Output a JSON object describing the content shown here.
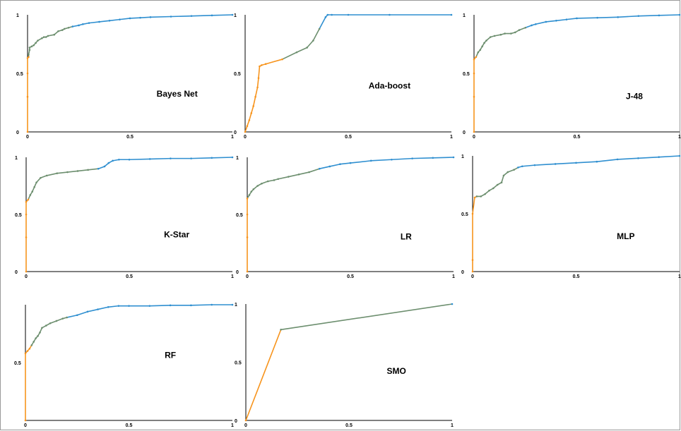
{
  "colors": {
    "low": "#f7941d",
    "mid": "#6d8f6f",
    "high": "#2f8fd0",
    "axis": "#000000"
  },
  "chart_data": [
    {
      "type": "line",
      "title": "Bayes Net",
      "xlim": [
        0,
        1
      ],
      "ylim": [
        0,
        1
      ],
      "x_ticks": [
        "0",
        "0.5",
        "1"
      ],
      "y_ticks": [
        "0",
        "0.5",
        "1"
      ],
      "x": [
        0,
        0,
        0,
        0,
        0.005,
        0.005,
        0.01,
        0.01,
        0.02,
        0.03,
        0.04,
        0.05,
        0.07,
        0.08,
        0.09,
        0.1,
        0.13,
        0.15,
        0.17,
        0.18,
        0.2,
        0.22,
        0.25,
        0.27,
        0.3,
        0.35,
        0.4,
        0.45,
        0.5,
        0.55,
        0.6,
        0.7,
        0.8,
        0.9,
        1.0
      ],
      "y": [
        0,
        0.3,
        0.5,
        0.63,
        0.64,
        0.66,
        0.7,
        0.72,
        0.73,
        0.74,
        0.76,
        0.78,
        0.8,
        0.81,
        0.81,
        0.82,
        0.83,
        0.86,
        0.87,
        0.88,
        0.89,
        0.9,
        0.91,
        0.92,
        0.93,
        0.94,
        0.95,
        0.96,
        0.97,
        0.975,
        0.98,
        0.985,
        0.99,
        0.995,
        1.0
      ]
    },
    {
      "type": "line",
      "title": "Ada-boost",
      "xlim": [
        0,
        1
      ],
      "ylim": [
        0,
        1
      ],
      "x_ticks": [
        "0",
        "0.5",
        "1"
      ],
      "y_ticks": [
        "0",
        "0.5",
        "1"
      ],
      "x": [
        0,
        0.01,
        0.02,
        0.03,
        0.04,
        0.05,
        0.06,
        0.065,
        0.07,
        0.08,
        0.1,
        0.18,
        0.25,
        0.3,
        0.33,
        0.36,
        0.39,
        0.4,
        0.42,
        0.5,
        0.7,
        1.0
      ],
      "y": [
        0,
        0.05,
        0.1,
        0.16,
        0.22,
        0.3,
        0.38,
        0.46,
        0.56,
        0.57,
        0.58,
        0.62,
        0.68,
        0.72,
        0.78,
        0.88,
        0.98,
        1.0,
        1.0,
        1.0,
        1.0,
        1.0
      ]
    },
    {
      "type": "line",
      "title": "J-48",
      "xlim": [
        0,
        1
      ],
      "ylim": [
        0,
        1
      ],
      "x_ticks": [
        "0",
        "0.5",
        "1"
      ],
      "y_ticks": [
        "0",
        "0.5",
        "1"
      ],
      "x": [
        0,
        0,
        0,
        0,
        0.01,
        0.02,
        0.03,
        0.04,
        0.05,
        0.06,
        0.08,
        0.1,
        0.13,
        0.15,
        0.18,
        0.2,
        0.22,
        0.25,
        0.28,
        0.3,
        0.35,
        0.4,
        0.45,
        0.5,
        0.6,
        0.7,
        0.8,
        0.9,
        1.0
      ],
      "y": [
        0,
        0.3,
        0.5,
        0.62,
        0.64,
        0.68,
        0.7,
        0.73,
        0.76,
        0.78,
        0.81,
        0.82,
        0.83,
        0.84,
        0.84,
        0.85,
        0.87,
        0.89,
        0.91,
        0.92,
        0.94,
        0.95,
        0.96,
        0.97,
        0.975,
        0.98,
        0.99,
        0.995,
        1.0
      ]
    },
    {
      "type": "line",
      "title": "K-Star",
      "xlim": [
        0,
        1
      ],
      "ylim": [
        0,
        1
      ],
      "x_ticks": [
        "0",
        "0.5",
        "1"
      ],
      "y_ticks": [
        "0",
        "0.5",
        "1"
      ],
      "x": [
        0,
        0,
        0,
        0,
        0.01,
        0.02,
        0.03,
        0.04,
        0.05,
        0.07,
        0.1,
        0.15,
        0.2,
        0.25,
        0.3,
        0.35,
        0.38,
        0.4,
        0.42,
        0.45,
        0.5,
        0.6,
        0.7,
        0.8,
        0.9,
        1.0
      ],
      "y": [
        0,
        0.3,
        0.5,
        0.61,
        0.63,
        0.67,
        0.7,
        0.74,
        0.78,
        0.82,
        0.84,
        0.86,
        0.87,
        0.88,
        0.89,
        0.9,
        0.92,
        0.95,
        0.97,
        0.98,
        0.98,
        0.985,
        0.99,
        0.99,
        0.995,
        1.0
      ]
    },
    {
      "type": "line",
      "title": "LR",
      "xlim": [
        0,
        1
      ],
      "ylim": [
        0,
        1
      ],
      "x_ticks": [
        "0",
        "0.5",
        "1"
      ],
      "y_ticks": [
        "0",
        "0.5",
        "1"
      ],
      "x": [
        0,
        0,
        0,
        0,
        0.01,
        0.02,
        0.03,
        0.05,
        0.07,
        0.1,
        0.13,
        0.15,
        0.2,
        0.25,
        0.3,
        0.35,
        0.4,
        0.45,
        0.5,
        0.6,
        0.7,
        0.8,
        0.9,
        1.0
      ],
      "y": [
        0,
        0.3,
        0.5,
        0.64,
        0.67,
        0.7,
        0.72,
        0.75,
        0.77,
        0.79,
        0.8,
        0.81,
        0.83,
        0.85,
        0.87,
        0.9,
        0.92,
        0.94,
        0.95,
        0.97,
        0.98,
        0.99,
        0.995,
        1.0
      ]
    },
    {
      "type": "line",
      "title": "MLP",
      "xlim": [
        0,
        1
      ],
      "ylim": [
        0,
        1
      ],
      "x_ticks": [
        "0",
        "0.5",
        "1"
      ],
      "y_ticks": [
        "0",
        "0.5",
        "1"
      ],
      "x": [
        0,
        0,
        0,
        0.01,
        0.02,
        0.04,
        0.06,
        0.08,
        0.1,
        0.12,
        0.14,
        0.15,
        0.17,
        0.2,
        0.22,
        0.24,
        0.3,
        0.4,
        0.5,
        0.6,
        0.7,
        0.8,
        0.9,
        1.0
      ],
      "y": [
        0,
        0.1,
        0.5,
        0.64,
        0.65,
        0.65,
        0.67,
        0.7,
        0.72,
        0.75,
        0.77,
        0.83,
        0.86,
        0.88,
        0.9,
        0.91,
        0.92,
        0.93,
        0.94,
        0.95,
        0.97,
        0.98,
        0.99,
        1.0
      ]
    },
    {
      "type": "line",
      "title": "RF",
      "xlim": [
        0,
        1
      ],
      "ylim": [
        0,
        1
      ],
      "x_ticks": [
        "0",
        "0.5",
        "1"
      ],
      "y_ticks": [
        "",
        "0.5",
        ""
      ],
      "x": [
        0,
        0,
        0.01,
        0.02,
        0.03,
        0.04,
        0.05,
        0.06,
        0.07,
        0.08,
        0.1,
        0.12,
        0.15,
        0.18,
        0.2,
        0.25,
        0.3,
        0.35,
        0.4,
        0.45,
        0.5,
        0.6,
        0.7,
        0.8,
        0.9,
        1.0
      ],
      "y": [
        0,
        0.58,
        0.6,
        0.62,
        0.65,
        0.68,
        0.71,
        0.73,
        0.76,
        0.8,
        0.82,
        0.84,
        0.86,
        0.88,
        0.89,
        0.91,
        0.94,
        0.96,
        0.98,
        0.99,
        0.99,
        0.99,
        0.995,
        0.995,
        1.0,
        1.0
      ]
    },
    {
      "type": "line",
      "title": "SMO",
      "xlim": [
        0,
        1
      ],
      "ylim": [
        0,
        1
      ],
      "x_ticks": [
        "0",
        "0.5",
        "1"
      ],
      "y_ticks": [
        "0",
        "0.5",
        "1"
      ],
      "x": [
        0,
        0.17,
        1.0
      ],
      "y": [
        0,
        0.78,
        1.0
      ]
    }
  ]
}
